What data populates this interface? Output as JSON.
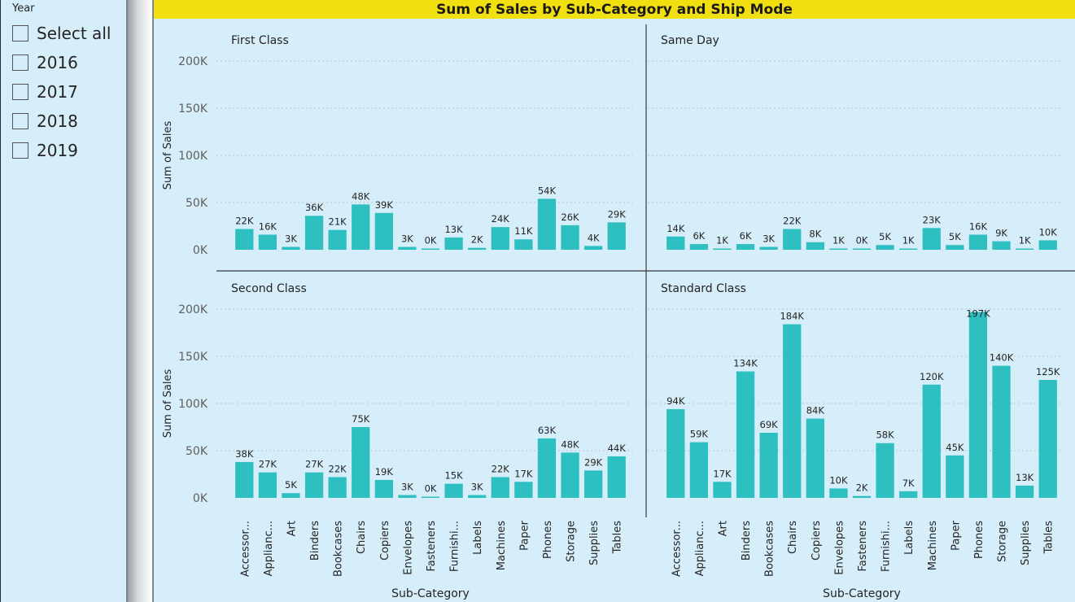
{
  "slicer": {
    "title": "Year",
    "items": [
      {
        "label": "Select all",
        "checked": false
      },
      {
        "label": "2016",
        "checked": false
      },
      {
        "label": "2017",
        "checked": false
      },
      {
        "label": "2018",
        "checked": false
      },
      {
        "label": "2019",
        "checked": false
      }
    ]
  },
  "visual": {
    "title": "Sum of Sales by Sub-Category and Ship Mode"
  },
  "chart_data": {
    "type": "bar",
    "title": "Sum of Sales by Sub-Category and Ship Mode",
    "xlabel": "Sub-Category",
    "ylabel": "Sum of Sales",
    "ylim": [
      0,
      200000
    ],
    "yticks": [
      0,
      50000,
      100000,
      150000,
      200000
    ],
    "ytick_labels": [
      "0K",
      "50K",
      "100K",
      "150K",
      "200K"
    ],
    "grid": true,
    "bar_color": "#2ec0c1",
    "categories": [
      "Accessor...",
      "Applianc...",
      "Art",
      "Binders",
      "Bookcases",
      "Chairs",
      "Copiers",
      "Envelopes",
      "Fasteners",
      "Furnishi...",
      "Labels",
      "Machines",
      "Paper",
      "Phones",
      "Storage",
      "Supplies",
      "Tables"
    ],
    "panels": [
      {
        "name": "First Class",
        "values": [
          22000,
          16000,
          3000,
          36000,
          21000,
          48000,
          39000,
          3000,
          0,
          13000,
          2000,
          24000,
          11000,
          54000,
          26000,
          4000,
          29000
        ],
        "labels": [
          "22K",
          "16K",
          "3K",
          "36K",
          "21K",
          "48K",
          "39K",
          "3K",
          "0K",
          "13K",
          "2K",
          "24K",
          "11K",
          "54K",
          "26K",
          "4K",
          "29K"
        ]
      },
      {
        "name": "Same Day",
        "values": [
          14000,
          6000,
          1000,
          6000,
          3000,
          22000,
          8000,
          1000,
          0,
          5000,
          1000,
          23000,
          5000,
          16000,
          9000,
          1000,
          10000
        ],
        "labels": [
          "14K",
          "6K",
          "1K",
          "6K",
          "3K",
          "22K",
          "8K",
          "1K",
          "0K",
          "5K",
          "1K",
          "23K",
          "5K",
          "16K",
          "9K",
          "1K",
          "10K"
        ]
      },
      {
        "name": "Second Class",
        "values": [
          38000,
          27000,
          5000,
          27000,
          22000,
          75000,
          19000,
          3000,
          0,
          15000,
          3000,
          22000,
          17000,
          63000,
          48000,
          29000,
          44000
        ],
        "labels": [
          "38K",
          "27K",
          "5K",
          "27K",
          "22K",
          "75K",
          "19K",
          "3K",
          "0K",
          "15K",
          "3K",
          "22K",
          "17K",
          "63K",
          "48K",
          "29K",
          "44K"
        ]
      },
      {
        "name": "Standard Class",
        "values": [
          94000,
          59000,
          17000,
          134000,
          69000,
          184000,
          84000,
          10000,
          2000,
          58000,
          7000,
          120000,
          45000,
          197000,
          140000,
          13000,
          125000
        ],
        "labels": [
          "94K",
          "59K",
          "17K",
          "134K",
          "69K",
          "184K",
          "84K",
          "10K",
          "2K",
          "58K",
          "7K",
          "120K",
          "45K",
          "197K",
          "140K",
          "13K",
          "125K"
        ]
      }
    ]
  }
}
